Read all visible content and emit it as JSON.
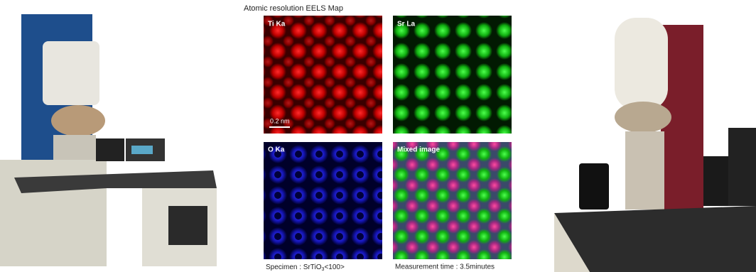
{
  "title": "Atomic resolution EELS Map",
  "panels": [
    {
      "label": "Ti Ka",
      "scale_bar": "0.2 nm"
    },
    {
      "label": "Sr La"
    },
    {
      "label": "O Ka"
    },
    {
      "label": "Mixed image"
    }
  ],
  "specimen": {
    "label": "Specimen : SrTiO",
    "subscript": "3",
    "suffix": "<100>"
  },
  "measurement": "Measurement time : 3.5minutes"
}
